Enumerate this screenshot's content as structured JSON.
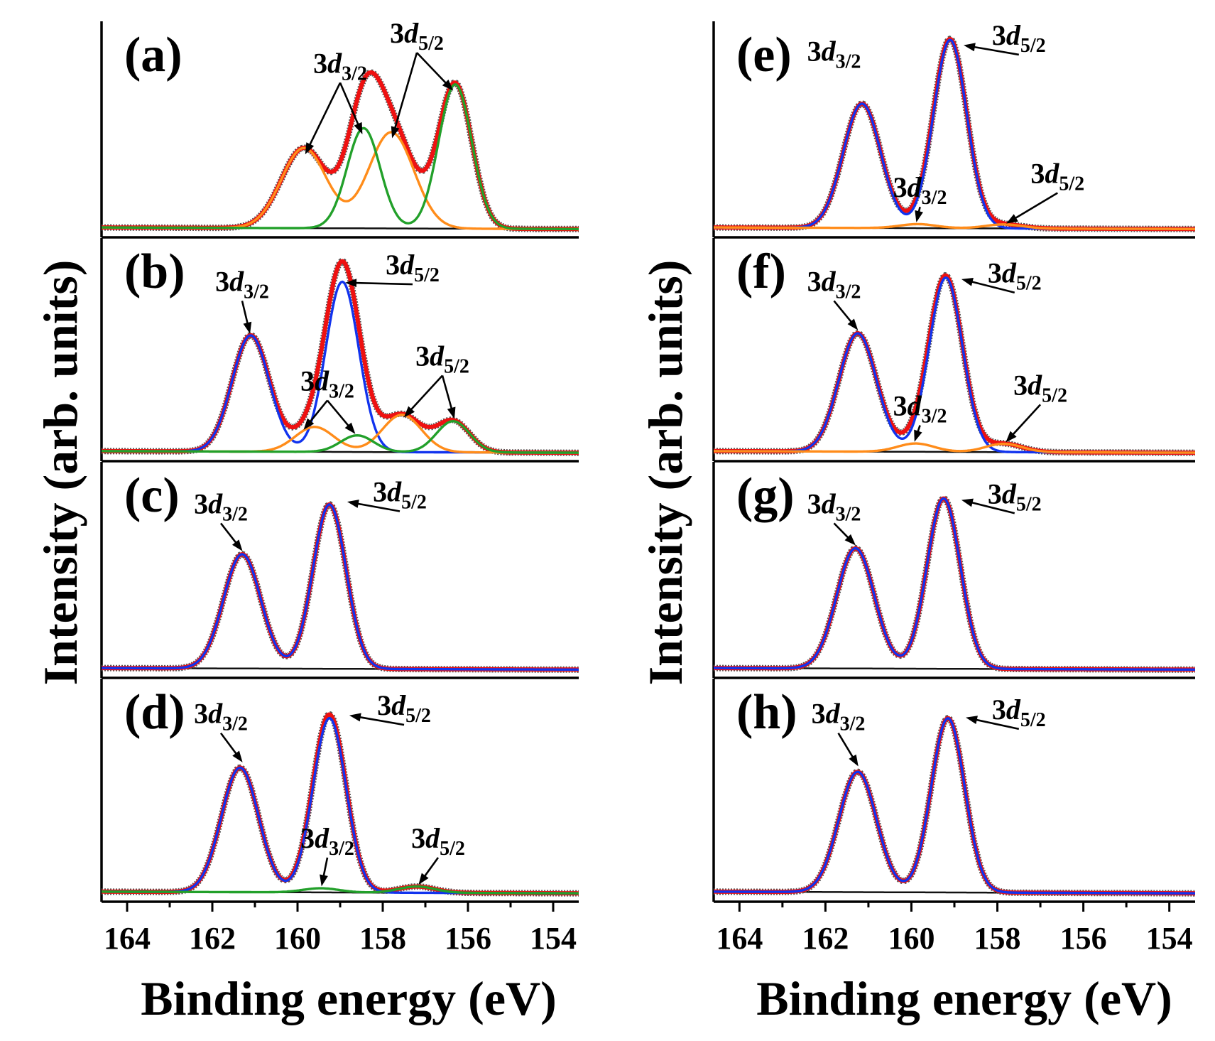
{
  "figure": {
    "xlabel": "Binding energy (eV)",
    "ylabel": "Intensity (arb. units)"
  },
  "colors": {
    "data": "#555555",
    "envelope": "#ee1111",
    "main": "#1133ee",
    "green": "#22a02a",
    "orange": "#ff8c1a",
    "baseline": "#111111"
  },
  "chart_data": [
    {
      "type": "line",
      "panel": "(a)",
      "column": "left",
      "row": 0,
      "xlim": [
        164.6,
        153.4
      ],
      "xticks": [
        164,
        162,
        160,
        158,
        156,
        154
      ],
      "show_ticks": false,
      "series": [
        {
          "color": "orange",
          "components": [
            [
              159.85,
              0.4,
              0.75
            ],
            [
              157.8,
              0.48,
              0.75
            ]
          ]
        },
        {
          "color": "green",
          "components": [
            [
              158.45,
              0.5,
              0.55
            ],
            [
              156.3,
              0.72,
              0.55
            ]
          ]
        }
      ],
      "envelope": "red",
      "annotations": [
        {
          "main": "3d",
          "sub": "3/2",
          "anchor": [
            159.0,
            0.8
          ],
          "arrows": [
            [
              159.85,
              0.38
            ],
            [
              158.45,
              0.48
            ]
          ]
        },
        {
          "main": "3d",
          "sub": "5/2",
          "anchor": [
            157.2,
            0.95
          ],
          "arrows": [
            [
              157.8,
              0.46
            ],
            [
              156.3,
              0.7
            ]
          ]
        }
      ]
    },
    {
      "type": "line",
      "panel": "(b)",
      "column": "left",
      "row": 1,
      "xlim": [
        164.6,
        153.4
      ],
      "xticks": [
        164,
        162,
        160,
        158,
        156,
        154
      ],
      "show_ticks": false,
      "series": [
        {
          "color": "blue",
          "components": [
            [
              161.1,
              0.56,
              0.62
            ],
            [
              158.95,
              0.82,
              0.55
            ]
          ]
        },
        {
          "color": "orange",
          "components": [
            [
              159.6,
              0.12,
              0.65
            ],
            [
              157.55,
              0.18,
              0.65
            ]
          ]
        },
        {
          "color": "green",
          "components": [
            [
              158.6,
              0.08,
              0.55
            ],
            [
              156.35,
              0.15,
              0.55
            ]
          ]
        }
      ],
      "envelope": "red",
      "annotations": [
        {
          "main": "3d",
          "sub": "3/2",
          "anchor": [
            161.3,
            0.8
          ],
          "arrows": [
            [
              161.1,
              0.58
            ]
          ]
        },
        {
          "main": "3d",
          "sub": "5/2",
          "anchor": [
            157.3,
            0.88
          ],
          "arrows": [
            [
              158.95,
              0.84
            ]
          ]
        },
        {
          "main": "3d",
          "sub": "3/2",
          "anchor": [
            159.3,
            0.32
          ],
          "arrows": [
            [
              159.9,
              0.12
            ],
            [
              158.6,
              0.1
            ]
          ]
        },
        {
          "main": "3d",
          "sub": "5/2",
          "anchor": [
            156.6,
            0.44
          ],
          "arrows": [
            [
              157.55,
              0.18
            ],
            [
              156.3,
              0.17
            ]
          ]
        }
      ]
    },
    {
      "type": "line",
      "panel": "(c)",
      "column": "left",
      "row": 2,
      "xlim": [
        164.6,
        153.4
      ],
      "xticks": [
        164,
        162,
        160,
        158,
        156,
        154
      ],
      "show_ticks": false,
      "series": [
        {
          "color": "blue",
          "components": [
            [
              161.3,
              0.57,
              0.62
            ],
            [
              159.25,
              0.82,
              0.55
            ]
          ]
        }
      ],
      "envelope": "red",
      "annotations": [
        {
          "main": "3d",
          "sub": "3/2",
          "anchor": [
            161.8,
            0.8
          ],
          "arrows": [
            [
              161.25,
              0.6
            ]
          ]
        },
        {
          "main": "3d",
          "sub": "5/2",
          "anchor": [
            157.6,
            0.86
          ],
          "arrows": [
            [
              158.9,
              0.86
            ]
          ]
        }
      ]
    },
    {
      "type": "line",
      "panel": "(d)",
      "column": "left",
      "row": 3,
      "xlim": [
        164.6,
        153.4
      ],
      "xticks": [
        164,
        162,
        160,
        158,
        156,
        154
      ],
      "show_ticks": true,
      "series": [
        {
          "color": "blue",
          "components": [
            [
              161.35,
              0.6,
              0.62
            ],
            [
              159.25,
              0.84,
              0.55
            ]
          ]
        },
        {
          "color": "green",
          "components": [
            [
              159.45,
              0.02,
              0.6
            ],
            [
              157.2,
              0.03,
              0.6
            ]
          ]
        }
      ],
      "envelope": "red",
      "annotations": [
        {
          "main": "3d",
          "sub": "3/2",
          "anchor": [
            161.8,
            0.84
          ],
          "arrows": [
            [
              161.25,
              0.64
            ]
          ]
        },
        {
          "main": "3d",
          "sub": "5/2",
          "anchor": [
            157.5,
            0.88
          ],
          "arrows": [
            [
              158.85,
              0.88
            ]
          ]
        },
        {
          "main": "3d",
          "sub": "3/2",
          "anchor": [
            159.3,
            0.24
          ],
          "arrows": [
            [
              159.45,
              0.04
            ]
          ]
        },
        {
          "main": "3d",
          "sub": "5/2",
          "anchor": [
            156.7,
            0.24
          ],
          "arrows": [
            [
              157.2,
              0.05
            ]
          ]
        }
      ]
    },
    {
      "type": "line",
      "panel": "(e)",
      "column": "right",
      "row": 0,
      "xlim": [
        164.6,
        153.4
      ],
      "xticks": [
        164,
        162,
        160,
        158,
        156,
        154
      ],
      "show_ticks": false,
      "series": [
        {
          "color": "blue",
          "components": [
            [
              161.15,
              0.62,
              0.62
            ],
            [
              159.1,
              0.94,
              0.55
            ]
          ]
        },
        {
          "color": "orange",
          "components": [
            [
              159.85,
              0.02,
              0.6
            ],
            [
              157.85,
              0.02,
              0.6
            ]
          ]
        }
      ],
      "envelope": "red",
      "annotations": [
        {
          "main": "3d",
          "sub": "3/2",
          "anchor": [
            161.8,
            0.86
          ],
          "arrows": []
        },
        {
          "main": "3d",
          "sub": "5/2",
          "anchor": [
            157.5,
            0.94
          ],
          "arrows": [
            [
              158.85,
              0.94
            ]
          ]
        },
        {
          "main": "3d",
          "sub": "3/2",
          "anchor": [
            159.8,
            0.18
          ],
          "arrows": [
            [
              159.9,
              0.04
            ]
          ]
        },
        {
          "main": "3d",
          "sub": "5/2",
          "anchor": [
            156.6,
            0.25
          ],
          "arrows": [
            [
              157.85,
              0.04
            ]
          ]
        }
      ]
    },
    {
      "type": "line",
      "panel": "(f)",
      "column": "right",
      "row": 1,
      "xlim": [
        164.6,
        153.4
      ],
      "xticks": [
        164,
        162,
        160,
        158,
        156,
        154
      ],
      "show_ticks": false,
      "series": [
        {
          "color": "blue",
          "components": [
            [
              161.25,
              0.57,
              0.62
            ],
            [
              159.2,
              0.84,
              0.55
            ]
          ]
        },
        {
          "color": "orange",
          "components": [
            [
              159.9,
              0.04,
              0.6
            ],
            [
              157.85,
              0.04,
              0.6
            ]
          ]
        }
      ],
      "envelope": "red",
      "annotations": [
        {
          "main": "3d",
          "sub": "3/2",
          "anchor": [
            161.8,
            0.8
          ],
          "arrows": [
            [
              161.2,
              0.6
            ]
          ]
        },
        {
          "main": "3d",
          "sub": "5/2",
          "anchor": [
            157.6,
            0.84
          ],
          "arrows": [
            [
              158.9,
              0.86
            ]
          ]
        },
        {
          "main": "3d",
          "sub": "3/2",
          "anchor": [
            159.8,
            0.2
          ],
          "arrows": [
            [
              159.95,
              0.06
            ]
          ]
        },
        {
          "main": "3d",
          "sub": "5/2",
          "anchor": [
            157.0,
            0.3
          ],
          "arrows": [
            [
              157.85,
              0.06
            ]
          ]
        }
      ]
    },
    {
      "type": "line",
      "panel": "(g)",
      "column": "right",
      "row": 2,
      "xlim": [
        164.6,
        153.4
      ],
      "xticks": [
        164,
        162,
        160,
        158,
        156,
        154
      ],
      "show_ticks": false,
      "series": [
        {
          "color": "blue",
          "components": [
            [
              161.3,
              0.6,
              0.62
            ],
            [
              159.25,
              0.85,
              0.55
            ]
          ]
        }
      ],
      "envelope": "red",
      "annotations": [
        {
          "main": "3d",
          "sub": "3/2",
          "anchor": [
            161.8,
            0.8
          ],
          "arrows": [
            [
              161.25,
              0.63
            ]
          ]
        },
        {
          "main": "3d",
          "sub": "5/2",
          "anchor": [
            157.6,
            0.85
          ],
          "arrows": [
            [
              158.9,
              0.87
            ]
          ]
        }
      ]
    },
    {
      "type": "line",
      "panel": "(h)",
      "column": "right",
      "row": 3,
      "xlim": [
        164.6,
        153.4
      ],
      "xticks": [
        164,
        162,
        160,
        158,
        156,
        154
      ],
      "show_ticks": true,
      "series": [
        {
          "color": "blue",
          "components": [
            [
              161.25,
              0.58,
              0.62
            ],
            [
              159.15,
              0.84,
              0.55
            ]
          ]
        }
      ],
      "envelope": "red",
      "annotations": [
        {
          "main": "3d",
          "sub": "3/2",
          "anchor": [
            161.7,
            0.84
          ],
          "arrows": [
            [
              161.2,
              0.62
            ]
          ]
        },
        {
          "main": "3d",
          "sub": "5/2",
          "anchor": [
            157.5,
            0.86
          ],
          "arrows": [
            [
              158.8,
              0.87
            ]
          ]
        }
      ]
    }
  ]
}
